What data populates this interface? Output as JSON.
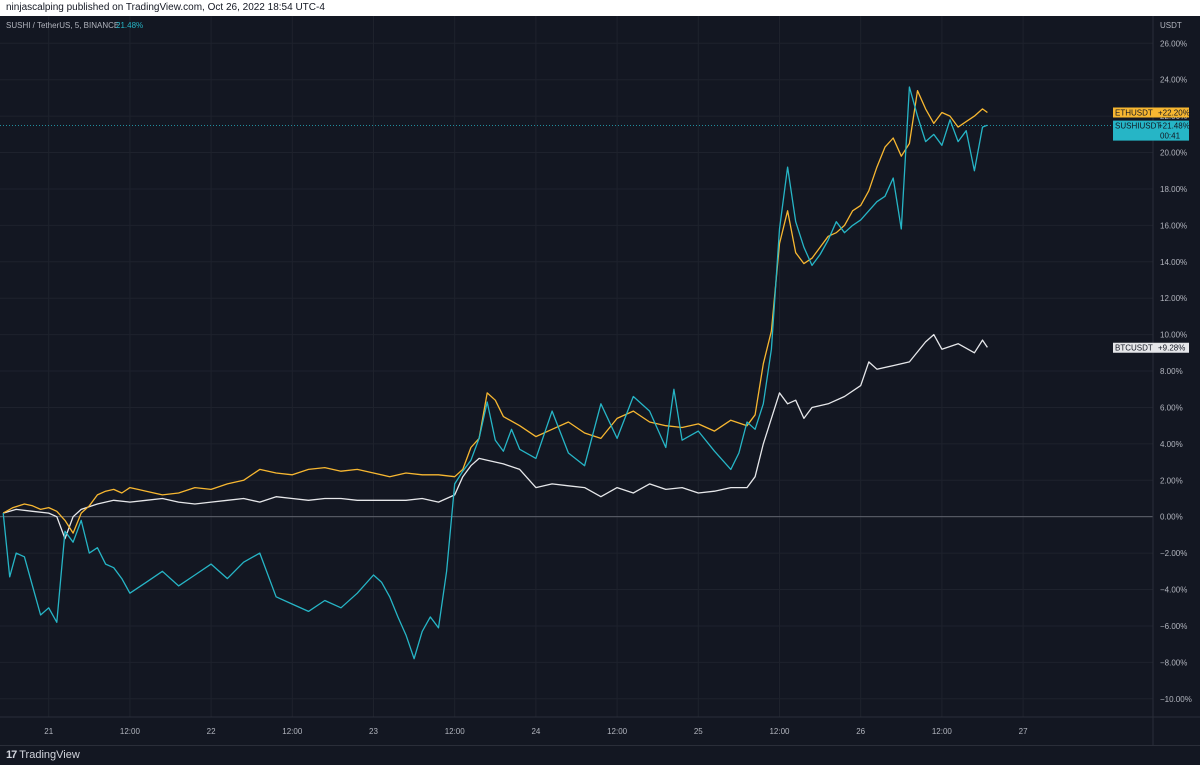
{
  "header": {
    "published_text": "ninjascalping published on TradingView.com, Oct 26, 2022 18:54 UTC-4"
  },
  "symbol_info": {
    "title": "SUSHI / TetherUS, 5, BINANCE",
    "change": "21.48%"
  },
  "footer": {
    "brand": "TradingView"
  },
  "colors": {
    "background": "#131722",
    "grid": "#1e222d",
    "eth": "#f7b731",
    "sushi": "#26b5c6",
    "btc": "#e6e7ea",
    "zero_line": "#787b86"
  },
  "chart_data": {
    "type": "line",
    "currency_label": "USDT",
    "ylim": [
      -11,
      27.5
    ],
    "xlim": [
      20.7,
      27.8
    ],
    "y_ticks": [
      "26.00%",
      "24.00%",
      "22.00%",
      "20.00%",
      "18.00%",
      "16.00%",
      "14.00%",
      "12.00%",
      "10.00%",
      "8.00%",
      "6.00%",
      "4.00%",
      "2.00%",
      "0.00%",
      "−2.00%",
      "−4.00%",
      "−6.00%",
      "−8.00%",
      "−10.00%"
    ],
    "y_tick_values": [
      26,
      24,
      22,
      20,
      18,
      16,
      14,
      12,
      10,
      8,
      6,
      4,
      2,
      0,
      -2,
      -4,
      -6,
      -8,
      -10
    ],
    "x_ticks": [
      {
        "label": "21",
        "x": 21.0
      },
      {
        "label": "12:00",
        "x": 21.5
      },
      {
        "label": "22",
        "x": 22.0
      },
      {
        "label": "12:00",
        "x": 22.5
      },
      {
        "label": "23",
        "x": 23.0
      },
      {
        "label": "12:00",
        "x": 23.5
      },
      {
        "label": "24",
        "x": 24.0
      },
      {
        "label": "12:00",
        "x": 24.5
      },
      {
        "label": "25",
        "x": 25.0
      },
      {
        "label": "12:00",
        "x": 25.5
      },
      {
        "label": "26",
        "x": 26.0
      },
      {
        "label": "12:00",
        "x": 26.5
      },
      {
        "label": "27",
        "x": 27.0
      }
    ],
    "series": [
      {
        "name": "ETHUSDT",
        "label": "+22.20%",
        "color": "#f7b731",
        "last": 22.2,
        "x": [
          20.72,
          20.78,
          20.85,
          20.9,
          20.95,
          21.0,
          21.05,
          21.1,
          21.15,
          21.2,
          21.25,
          21.3,
          21.35,
          21.4,
          21.45,
          21.5,
          21.55,
          21.6,
          21.7,
          21.8,
          21.9,
          22.0,
          22.1,
          22.2,
          22.3,
          22.4,
          22.5,
          22.6,
          22.7,
          22.8,
          22.9,
          23.0,
          23.1,
          23.2,
          23.3,
          23.4,
          23.5,
          23.55,
          23.6,
          23.65,
          23.7,
          23.75,
          23.8,
          23.9,
          24.0,
          24.1,
          24.2,
          24.3,
          24.4,
          24.5,
          24.6,
          24.7,
          24.8,
          24.9,
          25.0,
          25.1,
          25.2,
          25.3,
          25.35,
          25.4,
          25.45,
          25.5,
          25.55,
          25.6,
          25.65,
          25.7,
          25.75,
          25.8,
          25.85,
          25.9,
          25.95,
          26.0,
          26.05,
          26.1,
          26.15,
          26.2,
          26.25,
          26.3,
          26.35,
          26.4,
          26.45,
          26.5,
          26.55,
          26.6,
          26.65,
          26.7,
          26.75,
          26.78
        ],
        "y": [
          0.2,
          0.5,
          0.7,
          0.6,
          0.4,
          0.5,
          0.3,
          -0.2,
          -0.9,
          0.2,
          0.6,
          1.2,
          1.4,
          1.5,
          1.3,
          1.6,
          1.5,
          1.4,
          1.2,
          1.3,
          1.6,
          1.5,
          1.8,
          2.0,
          2.6,
          2.4,
          2.3,
          2.6,
          2.7,
          2.5,
          2.6,
          2.4,
          2.2,
          2.4,
          2.3,
          2.3,
          2.2,
          2.6,
          3.8,
          4.3,
          6.8,
          6.4,
          5.5,
          5.0,
          4.4,
          4.8,
          5.2,
          4.6,
          4.3,
          5.4,
          5.8,
          5.2,
          5.0,
          4.9,
          5.1,
          4.7,
          5.3,
          5.0,
          5.6,
          8.4,
          10.2,
          15.0,
          16.8,
          14.5,
          13.9,
          14.2,
          14.8,
          15.4,
          15.6,
          16.0,
          16.8,
          17.1,
          17.9,
          19.2,
          20.3,
          20.8,
          19.8,
          20.5,
          23.4,
          22.4,
          21.6,
          22.2,
          22.0,
          21.4,
          21.7,
          22.0,
          22.4,
          22.2
        ]
      },
      {
        "name": "SUSHIUSDT",
        "label": "+21.48%",
        "time_label": "00:41",
        "color": "#26b5c6",
        "last": 21.48,
        "x": [
          20.72,
          20.76,
          20.8,
          20.85,
          20.9,
          20.95,
          21.0,
          21.05,
          21.1,
          21.15,
          21.2,
          21.25,
          21.3,
          21.35,
          21.4,
          21.45,
          21.5,
          21.6,
          21.7,
          21.8,
          21.9,
          22.0,
          22.1,
          22.2,
          22.3,
          22.4,
          22.5,
          22.6,
          22.7,
          22.8,
          22.9,
          23.0,
          23.05,
          23.1,
          23.15,
          23.2,
          23.25,
          23.3,
          23.35,
          23.4,
          23.45,
          23.5,
          23.55,
          23.6,
          23.65,
          23.7,
          23.75,
          23.8,
          23.85,
          23.9,
          24.0,
          24.1,
          24.2,
          24.3,
          24.35,
          24.4,
          24.5,
          24.6,
          24.7,
          24.8,
          24.85,
          24.9,
          25.0,
          25.1,
          25.2,
          25.25,
          25.3,
          25.35,
          25.4,
          25.45,
          25.5,
          25.55,
          25.6,
          25.65,
          25.7,
          25.75,
          25.8,
          25.85,
          25.9,
          25.95,
          26.0,
          26.05,
          26.1,
          26.15,
          26.2,
          26.25,
          26.3,
          26.35,
          26.4,
          26.45,
          26.5,
          26.55,
          26.6,
          26.65,
          26.7,
          26.75,
          26.78
        ],
        "y": [
          0.2,
          -3.3,
          -2.0,
          -2.2,
          -3.8,
          -5.4,
          -5.0,
          -5.8,
          -0.8,
          -1.4,
          -0.2,
          -2.0,
          -1.7,
          -2.6,
          -2.8,
          -3.4,
          -4.2,
          -3.6,
          -3.0,
          -3.8,
          -3.2,
          -2.6,
          -3.4,
          -2.5,
          -2.0,
          -4.4,
          -4.8,
          -5.2,
          -4.6,
          -5.0,
          -4.2,
          -3.2,
          -3.6,
          -4.4,
          -5.5,
          -6.5,
          -7.8,
          -6.3,
          -5.5,
          -6.1,
          -3.0,
          1.8,
          2.5,
          3.1,
          4.3,
          6.3,
          4.2,
          3.6,
          4.8,
          3.7,
          3.2,
          5.8,
          3.5,
          2.8,
          4.5,
          6.2,
          4.3,
          6.6,
          5.8,
          3.8,
          7.0,
          4.2,
          4.7,
          3.6,
          2.6,
          3.5,
          5.2,
          4.8,
          6.2,
          9.2,
          15.8,
          19.2,
          16.2,
          14.8,
          13.8,
          14.4,
          15.2,
          16.2,
          15.6,
          16.0,
          16.3,
          16.8,
          17.3,
          17.6,
          18.6,
          15.8,
          23.6,
          22.0,
          20.6,
          21.0,
          20.4,
          21.8,
          20.6,
          21.2,
          19.0,
          21.4,
          21.5
        ]
      },
      {
        "name": "BTCUSDT",
        "label": "+9.28%",
        "color": "#e6e7ea",
        "last": 9.28,
        "x": [
          20.72,
          20.8,
          20.9,
          21.0,
          21.05,
          21.1,
          21.15,
          21.2,
          21.3,
          21.4,
          21.5,
          21.6,
          21.7,
          21.8,
          21.9,
          22.0,
          22.1,
          22.2,
          22.3,
          22.4,
          22.5,
          22.6,
          22.7,
          22.8,
          22.9,
          23.0,
          23.1,
          23.2,
          23.3,
          23.4,
          23.45,
          23.5,
          23.55,
          23.6,
          23.65,
          23.7,
          23.8,
          23.9,
          24.0,
          24.1,
          24.2,
          24.3,
          24.4,
          24.5,
          24.6,
          24.7,
          24.8,
          24.9,
          25.0,
          25.1,
          25.2,
          25.3,
          25.35,
          25.4,
          25.45,
          25.5,
          25.55,
          25.6,
          25.65,
          25.7,
          25.8,
          25.9,
          26.0,
          26.05,
          26.1,
          26.2,
          26.3,
          26.4,
          26.45,
          26.5,
          26.6,
          26.7,
          26.75,
          26.78
        ],
        "y": [
          0.2,
          0.4,
          0.3,
          0.2,
          0.0,
          -1.2,
          0.0,
          0.4,
          0.7,
          0.9,
          0.8,
          0.9,
          1.0,
          0.8,
          0.7,
          0.8,
          0.9,
          1.0,
          0.8,
          1.1,
          1.0,
          0.9,
          1.0,
          1.0,
          0.9,
          0.9,
          0.9,
          0.9,
          1.0,
          0.8,
          1.0,
          1.2,
          2.2,
          2.8,
          3.2,
          3.1,
          2.9,
          2.6,
          1.6,
          1.8,
          1.7,
          1.6,
          1.1,
          1.6,
          1.3,
          1.8,
          1.5,
          1.6,
          1.3,
          1.4,
          1.6,
          1.6,
          2.2,
          4.0,
          5.4,
          6.8,
          6.2,
          6.4,
          5.4,
          6.0,
          6.2,
          6.6,
          7.2,
          8.5,
          8.1,
          8.3,
          8.5,
          9.6,
          10.0,
          9.2,
          9.5,
          9.0,
          9.7,
          9.3
        ]
      }
    ]
  }
}
